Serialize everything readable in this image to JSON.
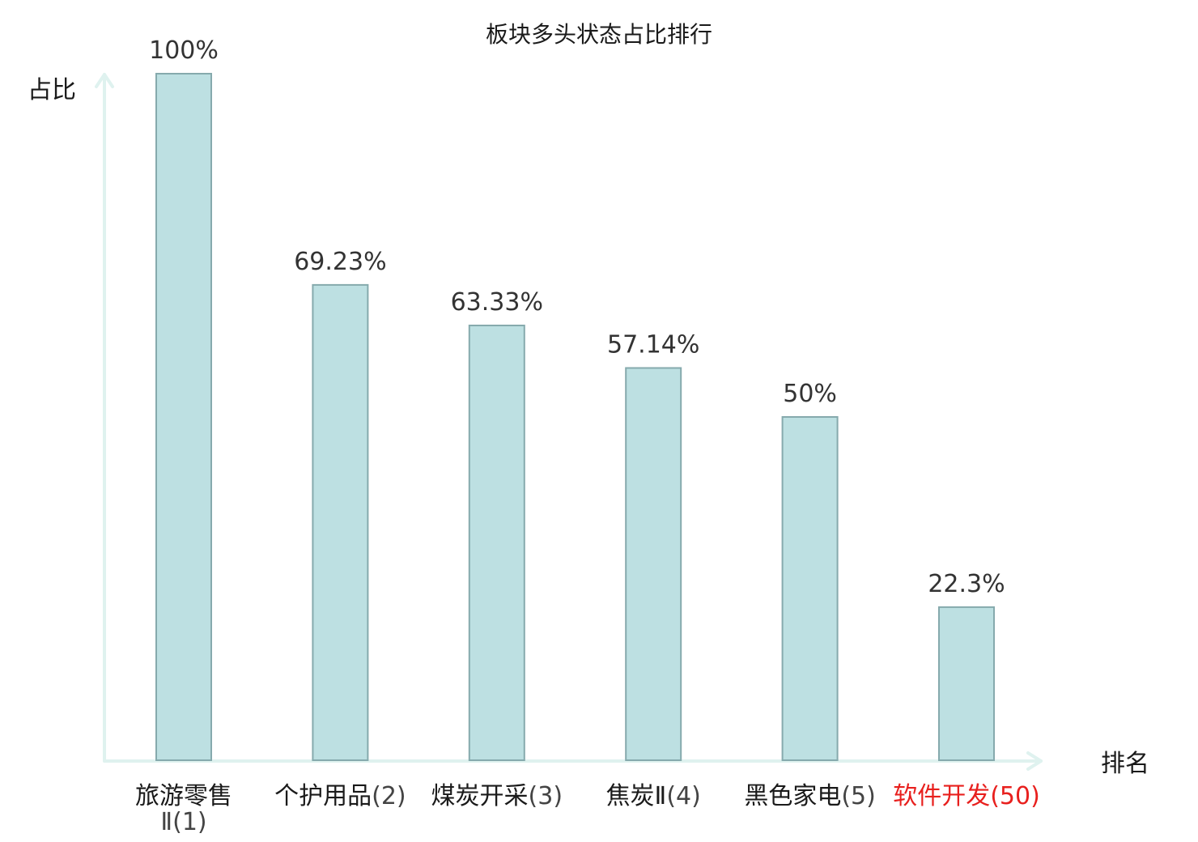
{
  "chart_data": {
    "type": "bar",
    "title": "板块多头状态占比排行",
    "ylabel": "占比",
    "xlabel": "排名",
    "ylim": [
      0,
      100
    ],
    "grid": false,
    "categories": [
      {
        "name": "旅游零售",
        "name2": "Ⅱ",
        "rank": "(1)",
        "value": 100,
        "label": "100%",
        "highlight": false
      },
      {
        "name": "个护用品",
        "rank": "(2)",
        "value": 69.23,
        "label": "69.23%",
        "highlight": false
      },
      {
        "name": "煤炭开采",
        "rank": "(3)",
        "value": 63.33,
        "label": "63.33%",
        "highlight": false
      },
      {
        "name": "焦炭Ⅱ",
        "rank": "(4)",
        "value": 57.14,
        "label": "57.14%",
        "highlight": false
      },
      {
        "name": "黑色家电",
        "rank": "(5)",
        "value": 50,
        "label": "50%",
        "highlight": false
      },
      {
        "name": "软件开发",
        "rank": "(50)",
        "value": 22.3,
        "label": "22.3%",
        "highlight": true
      }
    ],
    "colors": {
      "bar_fill": "#bde0e2",
      "bar_stroke": "#86aaad",
      "axis": "#dff2ef",
      "text": "#1a1a1a",
      "rank_text": "#444444",
      "highlight": "#e8201e"
    }
  }
}
